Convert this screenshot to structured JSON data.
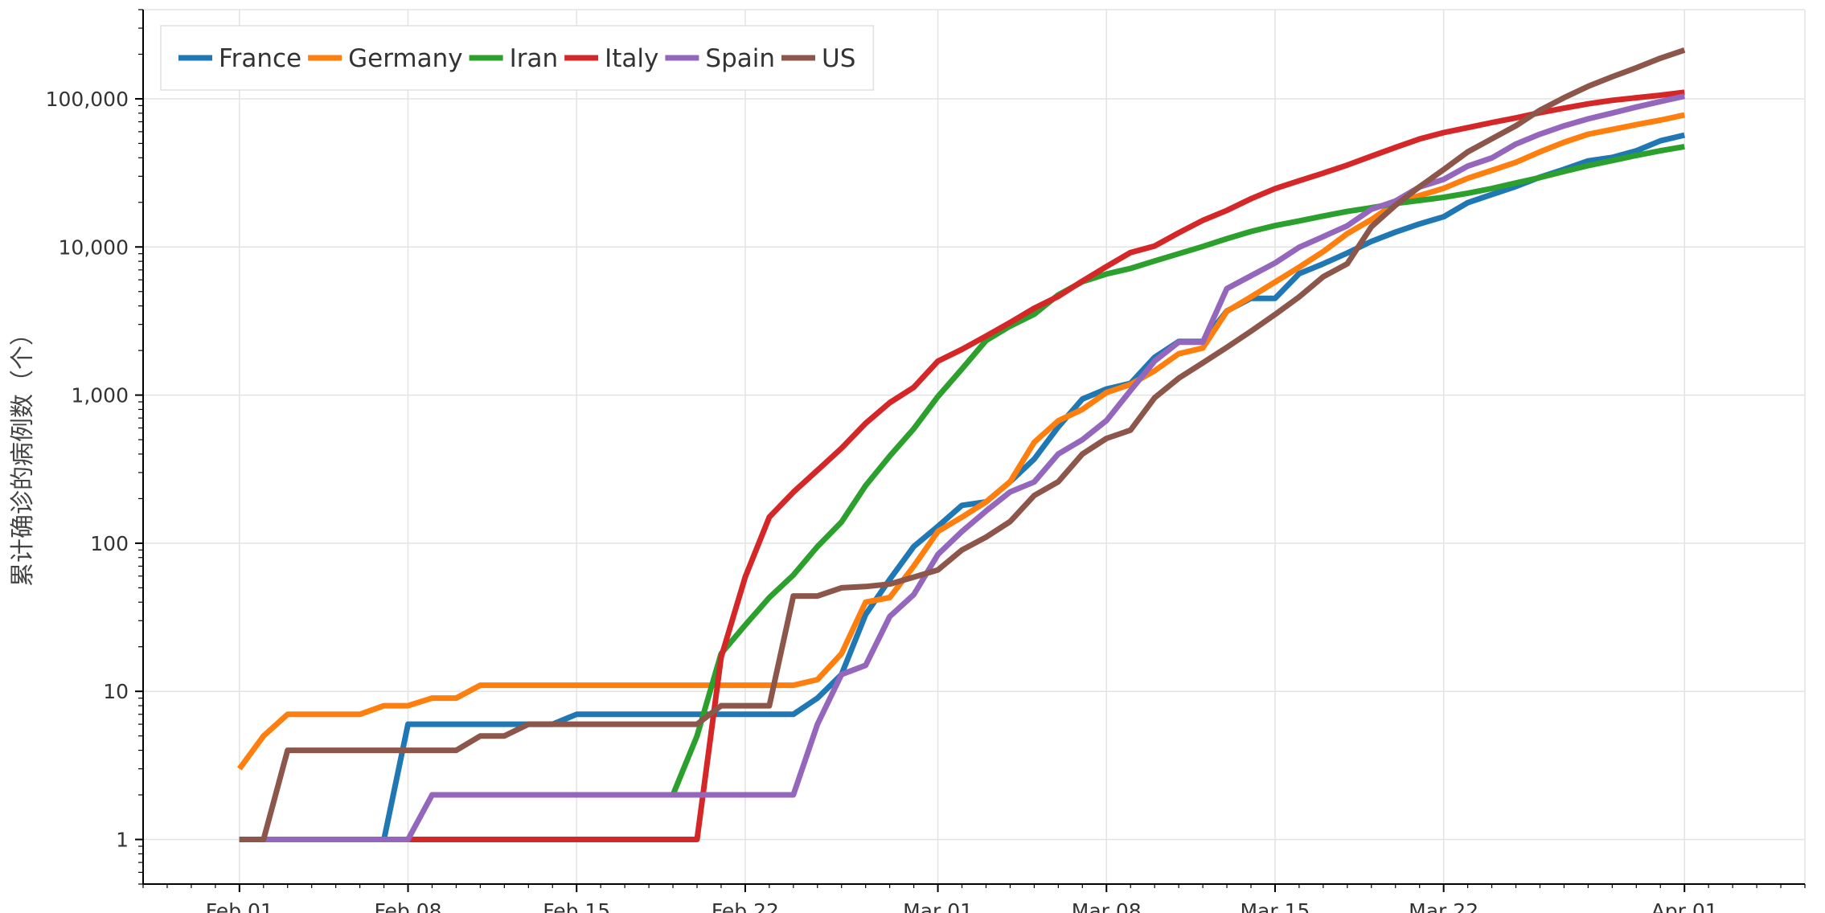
{
  "chart_data": {
    "type": "line",
    "ylabel": "累计确诊的病例数（个）",
    "xlabel": "",
    "yscale": "log",
    "ylim": [
      0.5,
      400000
    ],
    "xlim": [
      "2020-01-28",
      "2020-04-06"
    ],
    "grid": true,
    "legend_position": "top-left",
    "x_ticks": [
      {
        "date": "2020-02-01",
        "label": "Feb 01"
      },
      {
        "date": "2020-02-08",
        "label": "Feb 08"
      },
      {
        "date": "2020-02-15",
        "label": "Feb 15"
      },
      {
        "date": "2020-02-22",
        "label": "Feb 22"
      },
      {
        "date": "2020-03-01",
        "label": "Mar 01"
      },
      {
        "date": "2020-03-08",
        "label": "Mar 08"
      },
      {
        "date": "2020-03-15",
        "label": "Mar 15"
      },
      {
        "date": "2020-03-22",
        "label": "Mar 22"
      },
      {
        "date": "2020-04-01",
        "label": "Apr 01"
      }
    ],
    "y_ticks": [
      {
        "value": 1,
        "label": "1"
      },
      {
        "value": 10,
        "label": "10"
      },
      {
        "value": 100,
        "label": "100"
      },
      {
        "value": 1000,
        "label": "1,000"
      },
      {
        "value": 10000,
        "label": "10,000"
      },
      {
        "value": 100000,
        "label": "100,000"
      }
    ],
    "series": [
      {
        "name": "France",
        "color": "#1f77b4",
        "points": [
          [
            "2020-02-01",
            1
          ],
          [
            "2020-02-07",
            1
          ],
          [
            "2020-02-08",
            6
          ],
          [
            "2020-02-14",
            6
          ],
          [
            "2020-02-15",
            7
          ],
          [
            "2020-02-24",
            7
          ],
          [
            "2020-02-25",
            9
          ],
          [
            "2020-02-26",
            13
          ],
          [
            "2020-02-27",
            33
          ],
          [
            "2020-02-28",
            57
          ],
          [
            "2020-02-29",
            95
          ],
          [
            "2020-03-01",
            130
          ],
          [
            "2020-03-02",
            180
          ],
          [
            "2020-03-03",
            190
          ],
          [
            "2020-03-04",
            260
          ],
          [
            "2020-03-05",
            370
          ],
          [
            "2020-03-06",
            610
          ],
          [
            "2020-03-07",
            940
          ],
          [
            "2020-03-08",
            1100
          ],
          [
            "2020-03-09",
            1200
          ],
          [
            "2020-03-10",
            1800
          ],
          [
            "2020-03-11",
            2300
          ],
          [
            "2020-03-12",
            2300
          ],
          [
            "2020-03-13",
            3700
          ],
          [
            "2020-03-14",
            4500
          ],
          [
            "2020-03-15",
            4500
          ],
          [
            "2020-03-16",
            6600
          ],
          [
            "2020-03-17",
            7700
          ],
          [
            "2020-03-18",
            9100
          ],
          [
            "2020-03-19",
            10900
          ],
          [
            "2020-03-20",
            12600
          ],
          [
            "2020-03-21",
            14300
          ],
          [
            "2020-03-22",
            16000
          ],
          [
            "2020-03-23",
            19900
          ],
          [
            "2020-03-24",
            22600
          ],
          [
            "2020-03-25",
            25600
          ],
          [
            "2020-03-26",
            29600
          ],
          [
            "2020-03-27",
            33400
          ],
          [
            "2020-03-28",
            38100
          ],
          [
            "2020-03-29",
            40200
          ],
          [
            "2020-03-30",
            44600
          ],
          [
            "2020-03-31",
            52100
          ],
          [
            "2020-04-01",
            56900
          ]
        ]
      },
      {
        "name": "Germany",
        "color": "#ff7f0e",
        "points": [
          [
            "2020-02-01",
            3
          ],
          [
            "2020-02-02",
            5
          ],
          [
            "2020-02-03",
            7
          ],
          [
            "2020-02-06",
            7
          ],
          [
            "2020-02-07",
            8
          ],
          [
            "2020-02-08",
            8
          ],
          [
            "2020-02-09",
            9
          ],
          [
            "2020-02-10",
            9
          ],
          [
            "2020-02-11",
            11
          ],
          [
            "2020-02-24",
            11
          ],
          [
            "2020-02-25",
            12
          ],
          [
            "2020-02-26",
            18
          ],
          [
            "2020-02-27",
            40
          ],
          [
            "2020-02-28",
            43
          ],
          [
            "2020-02-29",
            70
          ],
          [
            "2020-03-01",
            120
          ],
          [
            "2020-03-02",
            150
          ],
          [
            "2020-03-03",
            190
          ],
          [
            "2020-03-04",
            260
          ],
          [
            "2020-03-05",
            480
          ],
          [
            "2020-03-06",
            670
          ],
          [
            "2020-03-07",
            800
          ],
          [
            "2020-03-08",
            1040
          ],
          [
            "2020-03-09",
            1180
          ],
          [
            "2020-03-10",
            1460
          ],
          [
            "2020-03-11",
            1900
          ],
          [
            "2020-03-12",
            2080
          ],
          [
            "2020-03-13",
            3680
          ],
          [
            "2020-03-14",
            4600
          ],
          [
            "2020-03-15",
            5800
          ],
          [
            "2020-03-16",
            7300
          ],
          [
            "2020-03-17",
            9300
          ],
          [
            "2020-03-18",
            12300
          ],
          [
            "2020-03-19",
            15300
          ],
          [
            "2020-03-20",
            19800
          ],
          [
            "2020-03-21",
            22200
          ],
          [
            "2020-03-22",
            24900
          ],
          [
            "2020-03-23",
            29100
          ],
          [
            "2020-03-24",
            32900
          ],
          [
            "2020-03-25",
            37300
          ],
          [
            "2020-03-26",
            43900
          ],
          [
            "2020-03-27",
            50900
          ],
          [
            "2020-03-28",
            57700
          ],
          [
            "2020-03-29",
            62100
          ],
          [
            "2020-03-30",
            66900
          ],
          [
            "2020-03-31",
            71800
          ],
          [
            "2020-04-01",
            77900
          ]
        ]
      },
      {
        "name": "Iran",
        "color": "#2ca02c",
        "points": [
          [
            "2020-02-19",
            2
          ],
          [
            "2020-02-20",
            5
          ],
          [
            "2020-02-21",
            18
          ],
          [
            "2020-02-22",
            28
          ],
          [
            "2020-02-23",
            43
          ],
          [
            "2020-02-24",
            61
          ],
          [
            "2020-02-25",
            95
          ],
          [
            "2020-02-26",
            139
          ],
          [
            "2020-02-27",
            245
          ],
          [
            "2020-02-28",
            388
          ],
          [
            "2020-02-29",
            593
          ],
          [
            "2020-03-01",
            978
          ],
          [
            "2020-03-02",
            1501
          ],
          [
            "2020-03-03",
            2336
          ],
          [
            "2020-03-04",
            2922
          ],
          [
            "2020-03-05",
            3513
          ],
          [
            "2020-03-06",
            4747
          ],
          [
            "2020-03-07",
            5823
          ],
          [
            "2020-03-08",
            6566
          ],
          [
            "2020-03-09",
            7161
          ],
          [
            "2020-03-10",
            8042
          ],
          [
            "2020-03-11",
            9000
          ],
          [
            "2020-03-12",
            10075
          ],
          [
            "2020-03-13",
            11364
          ],
          [
            "2020-03-14",
            12729
          ],
          [
            "2020-03-15",
            13938
          ],
          [
            "2020-03-16",
            14991
          ],
          [
            "2020-03-17",
            16169
          ],
          [
            "2020-03-18",
            17361
          ],
          [
            "2020-03-19",
            18407
          ],
          [
            "2020-03-20",
            19644
          ],
          [
            "2020-03-21",
            20610
          ],
          [
            "2020-03-22",
            21638
          ],
          [
            "2020-03-23",
            23049
          ],
          [
            "2020-03-24",
            24811
          ],
          [
            "2020-03-25",
            27017
          ],
          [
            "2020-03-26",
            29406
          ],
          [
            "2020-03-27",
            32332
          ],
          [
            "2020-03-28",
            35408
          ],
          [
            "2020-03-29",
            38309
          ],
          [
            "2020-03-30",
            41495
          ],
          [
            "2020-03-31",
            44605
          ],
          [
            "2020-04-01",
            47593
          ]
        ]
      },
      {
        "name": "Italy",
        "color": "#d62728",
        "points": [
          [
            "2020-02-01",
            1
          ],
          [
            "2020-02-20",
            1
          ],
          [
            "2020-02-21",
            17
          ],
          [
            "2020-02-22",
            59
          ],
          [
            "2020-02-23",
            150
          ],
          [
            "2020-02-24",
            221
          ],
          [
            "2020-02-25",
            311
          ],
          [
            "2020-02-26",
            438
          ],
          [
            "2020-02-27",
            645
          ],
          [
            "2020-02-28",
            889
          ],
          [
            "2020-02-29",
            1128
          ],
          [
            "2020-03-01",
            1694
          ],
          [
            "2020-03-02",
            2036
          ],
          [
            "2020-03-03",
            2502
          ],
          [
            "2020-03-04",
            3089
          ],
          [
            "2020-03-05",
            3858
          ],
          [
            "2020-03-06",
            4636
          ],
          [
            "2020-03-07",
            5883
          ],
          [
            "2020-03-08",
            7375
          ],
          [
            "2020-03-09",
            9172
          ],
          [
            "2020-03-10",
            10149
          ],
          [
            "2020-03-11",
            12462
          ],
          [
            "2020-03-12",
            15113
          ],
          [
            "2020-03-13",
            17660
          ],
          [
            "2020-03-14",
            21157
          ],
          [
            "2020-03-15",
            24747
          ],
          [
            "2020-03-16",
            27980
          ],
          [
            "2020-03-17",
            31506
          ],
          [
            "2020-03-18",
            35713
          ],
          [
            "2020-03-19",
            41035
          ],
          [
            "2020-03-20",
            47021
          ],
          [
            "2020-03-21",
            53578
          ],
          [
            "2020-03-22",
            59138
          ],
          [
            "2020-03-23",
            63927
          ],
          [
            "2020-03-24",
            69176
          ],
          [
            "2020-03-25",
            74386
          ],
          [
            "2020-03-26",
            80589
          ],
          [
            "2020-03-27",
            86498
          ],
          [
            "2020-03-28",
            92472
          ],
          [
            "2020-03-29",
            97689
          ],
          [
            "2020-03-30",
            101739
          ],
          [
            "2020-03-31",
            105792
          ],
          [
            "2020-04-01",
            110574
          ]
        ]
      },
      {
        "name": "Spain",
        "color": "#9467bd",
        "points": [
          [
            "2020-02-01",
            1
          ],
          [
            "2020-02-08",
            1
          ],
          [
            "2020-02-09",
            2
          ],
          [
            "2020-02-24",
            2
          ],
          [
            "2020-02-25",
            6
          ],
          [
            "2020-02-26",
            13
          ],
          [
            "2020-02-27",
            15
          ],
          [
            "2020-02-28",
            32
          ],
          [
            "2020-02-29",
            45
          ],
          [
            "2020-03-01",
            84
          ],
          [
            "2020-03-02",
            120
          ],
          [
            "2020-03-03",
            165
          ],
          [
            "2020-03-04",
            222
          ],
          [
            "2020-03-05",
            259
          ],
          [
            "2020-03-06",
            400
          ],
          [
            "2020-03-07",
            500
          ],
          [
            "2020-03-08",
            673
          ],
          [
            "2020-03-09",
            1073
          ],
          [
            "2020-03-10",
            1695
          ],
          [
            "2020-03-11",
            2277
          ],
          [
            "2020-03-12",
            2277
          ],
          [
            "2020-03-13",
            5232
          ],
          [
            "2020-03-14",
            6391
          ],
          [
            "2020-03-15",
            7798
          ],
          [
            "2020-03-16",
            9942
          ],
          [
            "2020-03-17",
            11748
          ],
          [
            "2020-03-18",
            13910
          ],
          [
            "2020-03-19",
            17963
          ],
          [
            "2020-03-20",
            20410
          ],
          [
            "2020-03-21",
            25374
          ],
          [
            "2020-03-22",
            28603
          ],
          [
            "2020-03-23",
            35136
          ],
          [
            "2020-03-24",
            39885
          ],
          [
            "2020-03-25",
            49515
          ],
          [
            "2020-03-26",
            57786
          ],
          [
            "2020-03-27",
            65719
          ],
          [
            "2020-03-28",
            73235
          ],
          [
            "2020-03-29",
            80110
          ],
          [
            "2020-03-30",
            87956
          ],
          [
            "2020-03-31",
            95923
          ],
          [
            "2020-04-01",
            104118
          ]
        ]
      },
      {
        "name": "US",
        "color": "#8c564b",
        "points": [
          [
            "2020-02-01",
            1
          ],
          [
            "2020-02-02",
            1
          ],
          [
            "2020-02-03",
            4
          ],
          [
            "2020-02-09",
            4
          ],
          [
            "2020-02-10",
            4
          ],
          [
            "2020-02-11",
            5
          ],
          [
            "2020-02-12",
            5
          ],
          [
            "2020-02-13",
            6
          ],
          [
            "2020-02-20",
            6
          ],
          [
            "2020-02-21",
            8
          ],
          [
            "2020-02-23",
            8
          ],
          [
            "2020-02-24",
            44
          ],
          [
            "2020-02-25",
            44
          ],
          [
            "2020-02-26",
            50
          ],
          [
            "2020-02-27",
            51
          ],
          [
            "2020-02-28",
            53
          ],
          [
            "2020-02-29",
            59
          ],
          [
            "2020-03-01",
            66
          ],
          [
            "2020-03-02",
            90
          ],
          [
            "2020-03-03",
            110
          ],
          [
            "2020-03-04",
            140
          ],
          [
            "2020-03-05",
            210
          ],
          [
            "2020-03-06",
            260
          ],
          [
            "2020-03-07",
            400
          ],
          [
            "2020-03-08",
            510
          ],
          [
            "2020-03-09",
            580
          ],
          [
            "2020-03-10",
            960
          ],
          [
            "2020-03-11",
            1300
          ],
          [
            "2020-03-12",
            1650
          ],
          [
            "2020-03-13",
            2100
          ],
          [
            "2020-03-14",
            2700
          ],
          [
            "2020-03-15",
            3500
          ],
          [
            "2020-03-16",
            4600
          ],
          [
            "2020-03-17",
            6300
          ],
          [
            "2020-03-18",
            7700
          ],
          [
            "2020-03-19",
            13700
          ],
          [
            "2020-03-20",
            19100
          ],
          [
            "2020-03-21",
            25500
          ],
          [
            "2020-03-22",
            33300
          ],
          [
            "2020-03-23",
            43800
          ],
          [
            "2020-03-24",
            53700
          ],
          [
            "2020-03-25",
            65800
          ],
          [
            "2020-03-26",
            83800
          ],
          [
            "2020-03-27",
            101700
          ],
          [
            "2020-03-28",
            121500
          ],
          [
            "2020-03-29",
            140900
          ],
          [
            "2020-03-30",
            161800
          ],
          [
            "2020-03-31",
            188200
          ],
          [
            "2020-04-01",
            213400
          ]
        ]
      }
    ]
  }
}
